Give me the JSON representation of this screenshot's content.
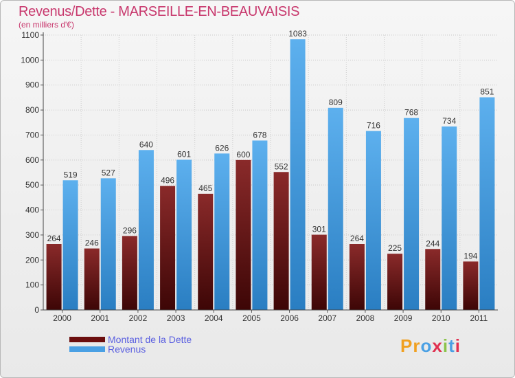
{
  "title": "Revenus/Dette - MARSEILLE-EN-BEAUVAISIS",
  "subtitle": "(en milliers d'€)",
  "legend": [
    {
      "label": "Montant de la Dette",
      "color": "#7a1a1a"
    },
    {
      "label": "Revenus",
      "color": "#4aa0e4"
    }
  ],
  "logo": {
    "text": "Proxiti",
    "colors": [
      "#f0a020",
      "#f0a020",
      "#4aa0e4",
      "#e03050",
      "#8bc34a",
      "#4aa0e4",
      "#e03050"
    ]
  },
  "chart_data": {
    "type": "bar",
    "title": "Revenus/Dette - MARSEILLE-EN-BEAUVAISIS",
    "ylabel": "(en milliers d'€)",
    "categories": [
      "2000",
      "2001",
      "2002",
      "2003",
      "2004",
      "2005",
      "2006",
      "2007",
      "2008",
      "2009",
      "2010",
      "2011"
    ],
    "series": [
      {
        "name": "Montant de la Dette",
        "color": "#7a1a1a",
        "values": [
          264,
          246,
          296,
          496,
          465,
          600,
          552,
          301,
          264,
          225,
          244,
          194
        ]
      },
      {
        "name": "Revenus",
        "color": "#4aa0e4",
        "values": [
          519,
          527,
          640,
          601,
          626,
          678,
          1083,
          809,
          716,
          768,
          734,
          851
        ]
      }
    ],
    "ylim": [
      0,
      1100
    ],
    "yticks": [
      0,
      100,
      200,
      300,
      400,
      500,
      600,
      700,
      800,
      900,
      1000,
      1100
    ],
    "grid": true,
    "legend_position": "bottom-left"
  }
}
